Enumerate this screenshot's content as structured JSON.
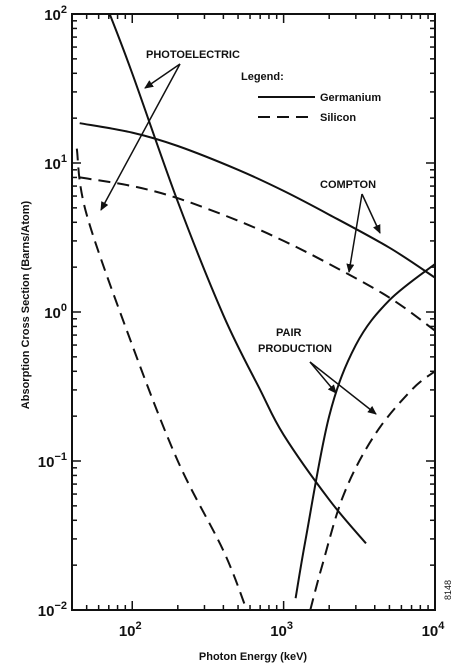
{
  "chart_data": {
    "type": "line",
    "xlabel": "Photon Energy (keV)",
    "ylabel": "Absorption Cross Section (Barns/Atom)",
    "x_scale": "log",
    "y_scale": "log",
    "xlim": [
      40,
      10000
    ],
    "ylim": [
      0.01,
      100
    ],
    "x_ticks": [
      {
        "value": 100,
        "base": "10",
        "exp": "2"
      },
      {
        "value": 1000,
        "base": "10",
        "exp": "3"
      },
      {
        "value": 10000,
        "base": "10",
        "exp": "4"
      }
    ],
    "y_ticks": [
      {
        "value": 100,
        "base": "10",
        "exp": "2"
      },
      {
        "value": 10,
        "base": "10",
        "exp": "1"
      },
      {
        "value": 1,
        "base": "10",
        "exp": "0"
      },
      {
        "value": 0.1,
        "base": "10",
        "exp": "−1"
      },
      {
        "value": 0.01,
        "base": "10",
        "exp": "−2"
      }
    ],
    "grid": false,
    "legend": {
      "title": "Legend:",
      "position": "top-right",
      "entries": [
        {
          "label": "Germanium",
          "style": "solid"
        },
        {
          "label": "Silicon",
          "style": "dashed"
        }
      ]
    },
    "series": [
      {
        "name": "Germanium",
        "process": "photoelectric",
        "style": "solid",
        "points": [
          [
            71,
            100
          ],
          [
            100,
            40
          ],
          [
            200,
            5.5
          ],
          [
            400,
            0.95
          ],
          [
            700,
            0.3
          ],
          [
            1000,
            0.15
          ],
          [
            2000,
            0.055
          ],
          [
            3500,
            0.028
          ]
        ]
      },
      {
        "name": "Germanium",
        "process": "compton",
        "style": "solid",
        "points": [
          [
            45,
            18.5
          ],
          [
            100,
            16
          ],
          [
            200,
            13
          ],
          [
            500,
            9
          ],
          [
            1000,
            6.5
          ],
          [
            2000,
            4.5
          ],
          [
            5000,
            2.7
          ],
          [
            10000,
            1.7
          ]
        ]
      },
      {
        "name": "Germanium",
        "process": "pair production",
        "style": "solid",
        "points": [
          [
            1200,
            0.012
          ],
          [
            1400,
            0.03
          ],
          [
            2000,
            0.2
          ],
          [
            3000,
            0.6
          ],
          [
            5000,
            1.2
          ],
          [
            10000,
            2.1
          ]
        ]
      },
      {
        "name": "Silicon",
        "process": "photoelectric",
        "style": "dashed",
        "points": [
          [
            43,
            12.5
          ],
          [
            50,
            4.5
          ],
          [
            100,
            0.6
          ],
          [
            200,
            0.1
          ],
          [
            400,
            0.025
          ],
          [
            570,
            0.01
          ]
        ]
      },
      {
        "name": "Silicon",
        "process": "compton",
        "style": "dashed",
        "points": [
          [
            45,
            8
          ],
          [
            100,
            7
          ],
          [
            200,
            5.8
          ],
          [
            500,
            4.1
          ],
          [
            1000,
            3.0
          ],
          [
            2000,
            2.1
          ],
          [
            5000,
            1.25
          ],
          [
            10000,
            0.75
          ]
        ]
      },
      {
        "name": "Silicon",
        "process": "pair production",
        "style": "dashed",
        "points": [
          [
            1500,
            0.01
          ],
          [
            1800,
            0.02
          ],
          [
            2500,
            0.06
          ],
          [
            4000,
            0.15
          ],
          [
            7000,
            0.3
          ],
          [
            10000,
            0.4
          ]
        ]
      }
    ],
    "annotations": [
      {
        "id": "photoelectric",
        "lines": [
          "PHOTOELECTRIC"
        ]
      },
      {
        "id": "compton",
        "lines": [
          "COMPTON"
        ]
      },
      {
        "id": "pair",
        "lines": [
          "PAIR",
          "PRODUCTION"
        ]
      }
    ],
    "figure_id": "8148"
  }
}
